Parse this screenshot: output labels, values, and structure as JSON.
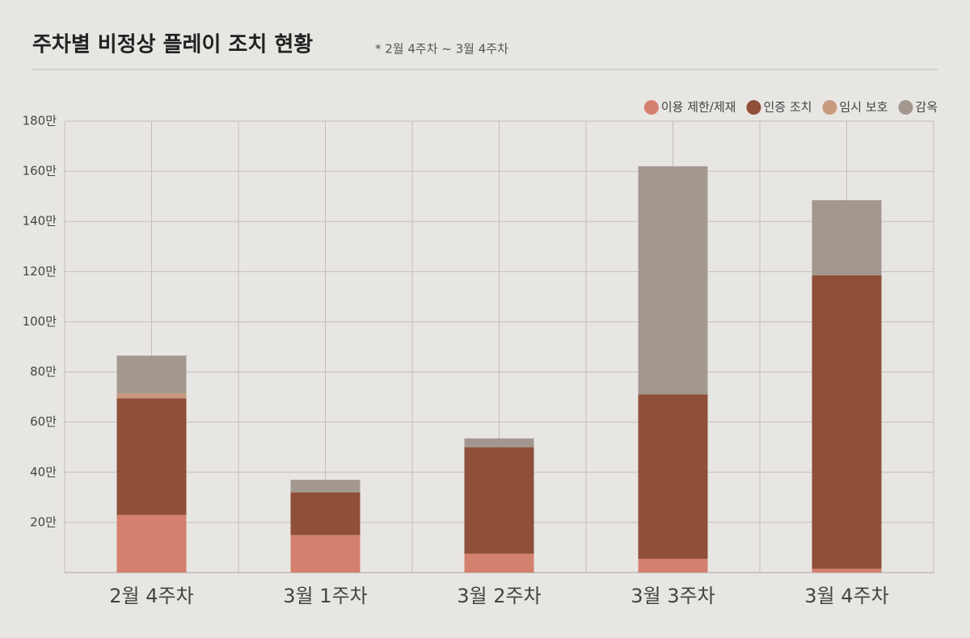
{
  "chart_data": {
    "type": "stacked_bar",
    "title": "주차별 비정상 플레이 조치 현황",
    "subtitle": "* 2월 4주차 ~ 3월 4주차",
    "categories": [
      "2월 4주차",
      "3월 1주차",
      "3월 2주차",
      "3월 3주차",
      "3월 4주차"
    ],
    "series": [
      {
        "name": "이용 제한/제재",
        "color": "#d4806f",
        "values": [
          23,
          15,
          7.5,
          5.5,
          1.5
        ]
      },
      {
        "name": "인증 조치",
        "color": "#8f4f38",
        "values": [
          46.5,
          17,
          42.5,
          65.5,
          117
        ]
      },
      {
        "name": "임시 보호",
        "color": "#c89a7e",
        "values": [
          2,
          0,
          0,
          0,
          0
        ]
      },
      {
        "name": "감옥",
        "color": "#a39890",
        "values": [
          15,
          5,
          3.5,
          91,
          30
        ]
      }
    ],
    "ylim": [
      0,
      180
    ],
    "yticks": [
      {
        "value": 20,
        "label": "20만"
      },
      {
        "value": 40,
        "label": "40만"
      },
      {
        "value": 60,
        "label": "60만"
      },
      {
        "value": 80,
        "label": "80만"
      },
      {
        "value": 100,
        "label": "100만"
      },
      {
        "value": 120,
        "label": "120만"
      },
      {
        "value": 140,
        "label": "140만"
      },
      {
        "value": 160,
        "label": "160만"
      },
      {
        "value": 180,
        "label": "180만"
      }
    ],
    "grid": true,
    "legend": "top-right"
  }
}
